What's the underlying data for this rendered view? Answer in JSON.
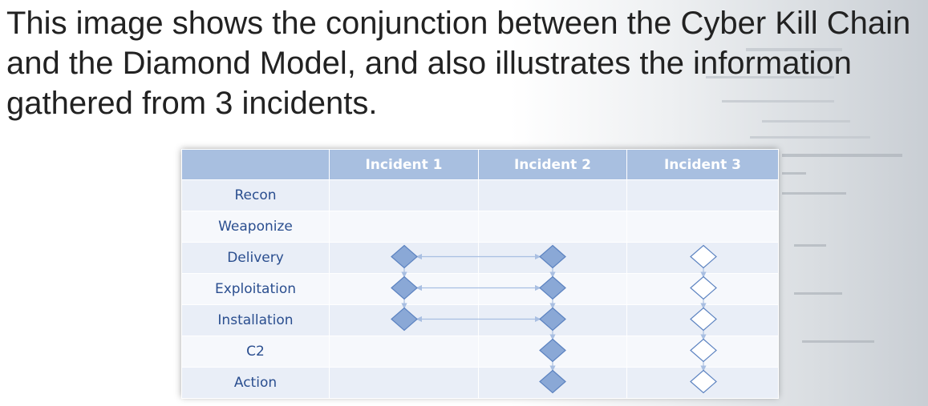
{
  "caption": "This image shows the conjunction between the Cyber Kill Chain and the Diamond Model, and also illustrates the information gathered from 3 incidents.",
  "table": {
    "corner": "",
    "incidents": [
      "Incident 1",
      "Incident 2",
      "Incident 3"
    ],
    "phases": [
      "Recon",
      "Weaponize",
      "Delivery",
      "Exploitation",
      "Installation",
      "C2",
      "Action"
    ]
  },
  "diamonds": {
    "incident_1": [
      "Delivery",
      "Exploitation",
      "Installation"
    ],
    "incident_2": [
      "Delivery",
      "Exploitation",
      "Installation",
      "C2",
      "Action"
    ],
    "incident_3": [
      "Delivery",
      "Exploitation",
      "Installation",
      "C2",
      "Action"
    ]
  },
  "links": [
    "Delivery",
    "Exploitation",
    "Installation"
  ],
  "colors": {
    "header": "#a8bfe0",
    "phase_text": "#2a4e8f",
    "filled_diamond": "#8aa8d6",
    "diamond_stroke": "#5b82c0",
    "arrow": "#a9bfe2"
  }
}
